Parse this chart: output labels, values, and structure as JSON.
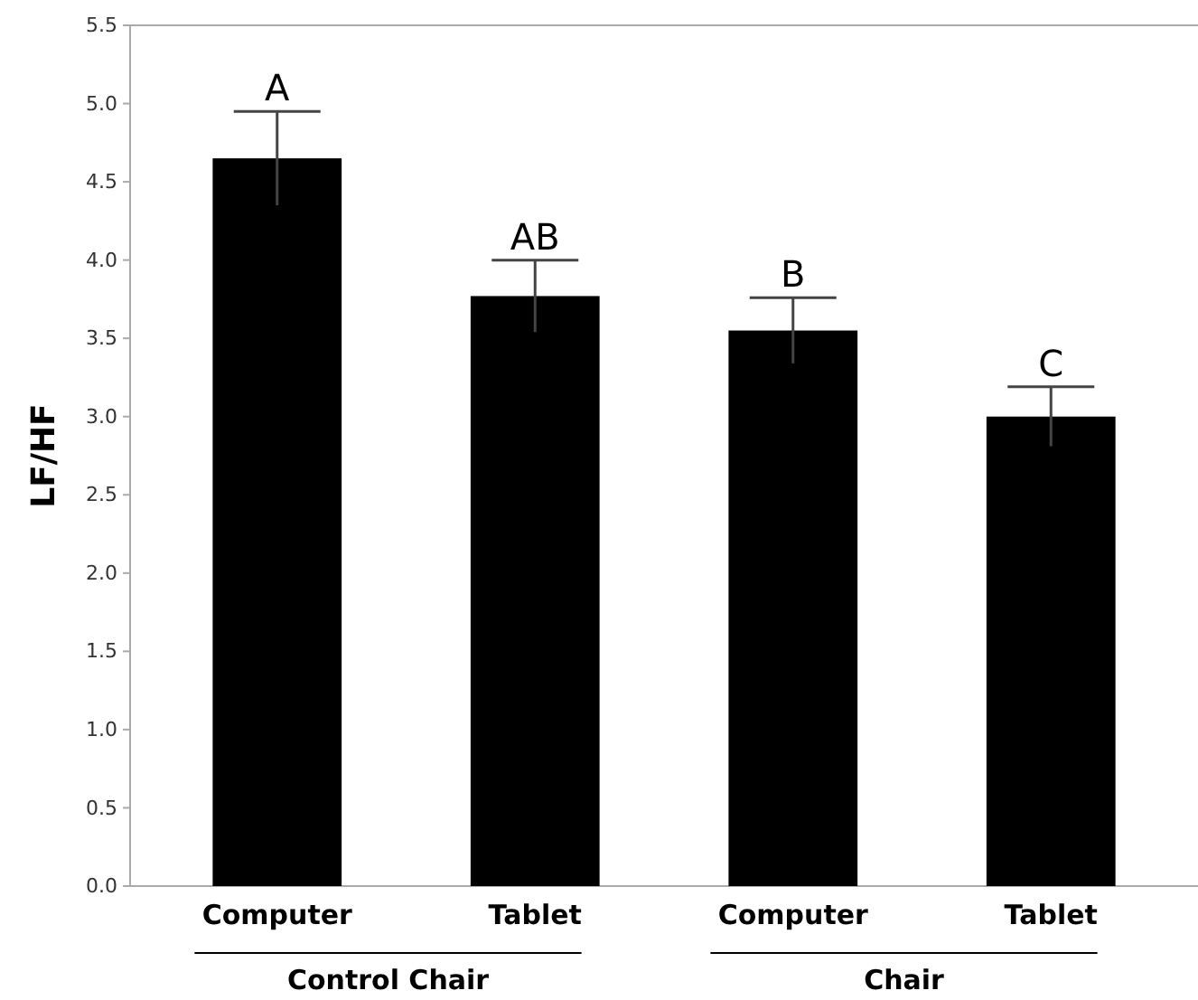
{
  "chart_data": {
    "type": "bar",
    "ylabel": "LF/HF",
    "categories": [
      "Computer",
      "Tablet",
      "Computer",
      "Tablet"
    ],
    "values": [
      4.65,
      3.77,
      3.55,
      3.0
    ],
    "errors": [
      0.3,
      0.23,
      0.21,
      0.19
    ],
    "color": "#000000",
    "ylim": [
      0,
      5.5
    ],
    "yticks": [
      {
        "value": 0,
        "label": "0.0"
      },
      {
        "value": 0.5,
        "label": "0.5"
      },
      {
        "value": 1,
        "label": "1.0"
      },
      {
        "value": 1.5,
        "label": "1.5"
      },
      {
        "value": 2,
        "label": "2.0"
      },
      {
        "value": 2.5,
        "label": "2.5"
      },
      {
        "value": 3,
        "label": "3.0"
      },
      {
        "value": 3.5,
        "label": "3.5"
      },
      {
        "value": 4,
        "label": "4.0"
      },
      {
        "value": 4.5,
        "label": "4.5"
      },
      {
        "value": 5,
        "label": "5.0"
      },
      {
        "value": 5.5,
        "label": "5.5"
      }
    ],
    "annotations": [
      "A",
      "AB",
      "B",
      "C",
      "Control Chair",
      "Chair"
    ],
    "grid": false
  }
}
